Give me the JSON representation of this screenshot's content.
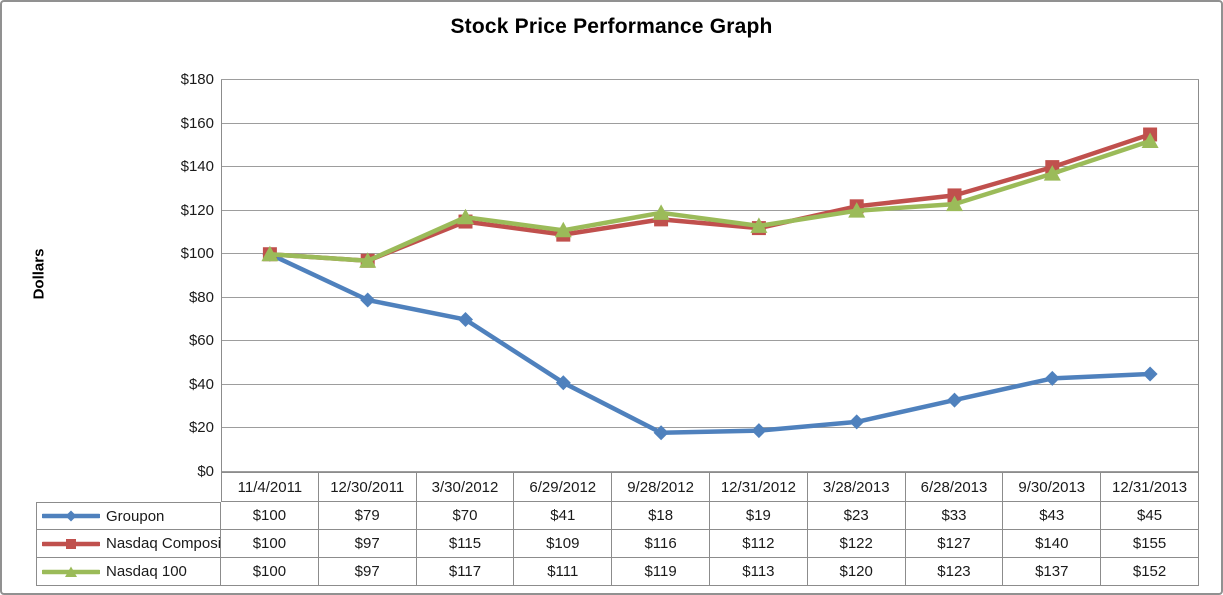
{
  "title": "Stock Price Performance Graph",
  "y_axis": {
    "label": "Dollars",
    "tick_labels": [
      "$180",
      "$160",
      "$140",
      "$120",
      "$100",
      "$80",
      "$60",
      "$40",
      "$20",
      "$0"
    ]
  },
  "colors": {
    "grid": "#9D9D9D",
    "axis": "#8C8C8C",
    "table_border": "#8C8C8C",
    "frame_border": "#919191",
    "text": "#1a1a1a"
  },
  "chart_data": {
    "type": "line",
    "title": "Stock Price Performance Graph",
    "xlabel": "",
    "ylabel": "Dollars",
    "ylim": [
      0,
      180
    ],
    "ytick_step": 20,
    "grid": true,
    "legend_position": "table-left",
    "value_prefix": "$",
    "categories": [
      "11/4/2011",
      "12/30/2011",
      "3/30/2012",
      "6/29/2012",
      "9/28/2012",
      "12/31/2012",
      "3/28/2013",
      "6/28/2013",
      "9/30/2013",
      "12/31/2013"
    ],
    "series": [
      {
        "name": "Groupon",
        "color": "#4F81BD",
        "marker": "diamond",
        "values": [
          100,
          79,
          70,
          41,
          18,
          19,
          23,
          33,
          43,
          45
        ]
      },
      {
        "name": "Nasdaq Composite",
        "color": "#C0504D",
        "marker": "square",
        "values": [
          100,
          97,
          115,
          109,
          116,
          112,
          122,
          127,
          140,
          155
        ]
      },
      {
        "name": "Nasdaq 100",
        "color": "#9BBB59",
        "marker": "triangle",
        "values": [
          100,
          97,
          117,
          111,
          119,
          113,
          120,
          123,
          137,
          152
        ]
      }
    ]
  }
}
